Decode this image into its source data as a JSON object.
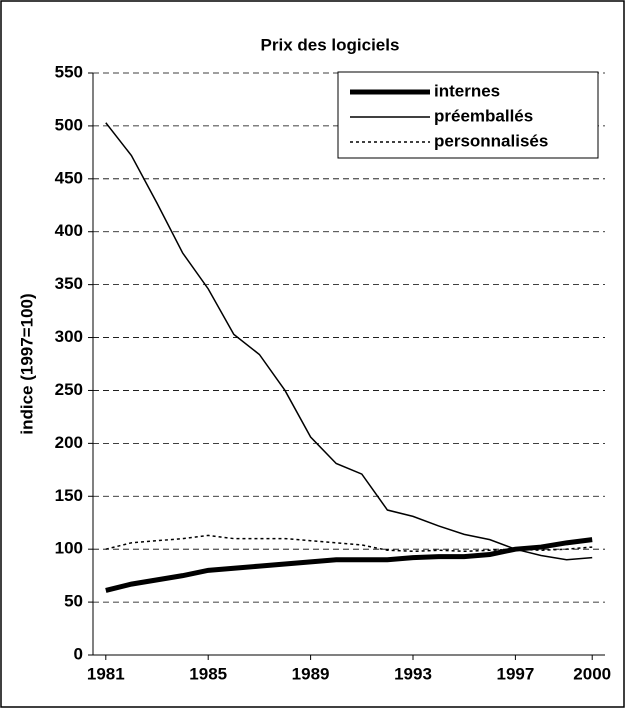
{
  "chart_data": {
    "type": "line",
    "title": "Prix des logiciels",
    "y_label": "indice (1997=100)",
    "x": [
      1981,
      1982,
      1983,
      1984,
      1985,
      1986,
      1987,
      1988,
      1989,
      1990,
      1991,
      1992,
      1993,
      1994,
      1995,
      1996,
      1997,
      1998,
      1999,
      2000
    ],
    "xlim": [
      1980.5,
      2000.5
    ],
    "xticks": [
      1981,
      1985,
      1989,
      1993,
      1997,
      2000
    ],
    "ylim": [
      0,
      550
    ],
    "yticks": [
      0,
      50,
      100,
      150,
      200,
      250,
      300,
      350,
      400,
      450,
      500,
      550
    ],
    "grid": true,
    "legend": "top-right",
    "series": [
      {
        "name": "internes",
        "color": "#000000",
        "values": [
          61,
          67,
          71,
          75,
          80,
          82,
          84,
          86,
          88,
          90,
          90,
          90,
          92,
          93,
          93,
          95,
          100,
          102,
          106,
          109
        ]
      },
      {
        "name": "préemballés",
        "color": "#000000",
        "values": [
          503,
          472,
          427,
          380,
          346,
          303,
          284,
          250,
          206,
          181,
          171,
          137,
          131,
          122,
          114,
          109,
          100,
          94,
          90,
          92
        ]
      },
      {
        "name": "personnalisés",
        "color": "#000000",
        "values": [
          100,
          106,
          108,
          110,
          113,
          110,
          110,
          110,
          108,
          106,
          104,
          99,
          98,
          99,
          98,
          99,
          100,
          99,
          100,
          102
        ]
      }
    ]
  }
}
